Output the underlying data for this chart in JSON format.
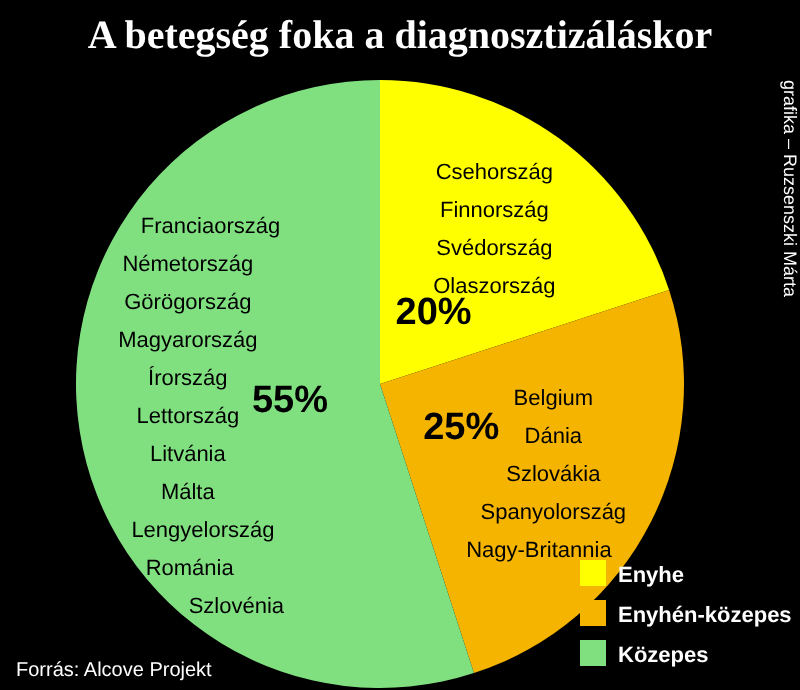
{
  "chart_data": {
    "type": "pie",
    "title": "A betegség foka a diagnosztizáláskor",
    "categories": [
      "Enyhe",
      "Enyhén-közepes",
      "Közepes"
    ],
    "values": [
      20,
      25,
      55
    ],
    "value_labels": [
      "20%",
      "25%",
      "55%"
    ],
    "colors": [
      "#ffff00",
      "#f5b400",
      "#80e080"
    ],
    "legend": "bottom right",
    "annotations": [
      {
        "text": "Csehország",
        "x": "Enyhe"
      },
      {
        "text": "Finnország",
        "x": "Enyhe"
      },
      {
        "text": "Svédország",
        "x": "Enyhe"
      },
      {
        "text": "Olaszország",
        "x": "Enyhe"
      },
      {
        "text": "Belgium",
        "x": "Enyhén-közepes"
      },
      {
        "text": "Dánia",
        "x": "Enyhén-közepes"
      },
      {
        "text": "Szlovákia",
        "x": "Enyhén-közepes"
      },
      {
        "text": "Spanyolország",
        "x": "Enyhén-közepes"
      },
      {
        "text": "Nagy-Britannia",
        "x": "Enyhén-közepes"
      },
      {
        "text": "Franciaország",
        "x": "Közepes"
      },
      {
        "text": "Németország",
        "x": "Közepes"
      },
      {
        "text": "Görögország",
        "x": "Közepes"
      },
      {
        "text": "Magyarország",
        "x": "Közepes"
      },
      {
        "text": "Írország",
        "x": "Közepes"
      },
      {
        "text": "Lettország",
        "x": "Közepes"
      },
      {
        "text": "Litvánia",
        "x": "Közepes"
      },
      {
        "text": "Málta",
        "x": "Közepes"
      },
      {
        "text": "Lengyelország",
        "x": "Közepes"
      },
      {
        "text": "Románia",
        "x": "Közepes"
      },
      {
        "text": "Szlovénia",
        "x": "Közepes"
      },
      "Forrás: Alcove Projekt",
      "grafika – Ruzsenszki Márta"
    ]
  }
}
